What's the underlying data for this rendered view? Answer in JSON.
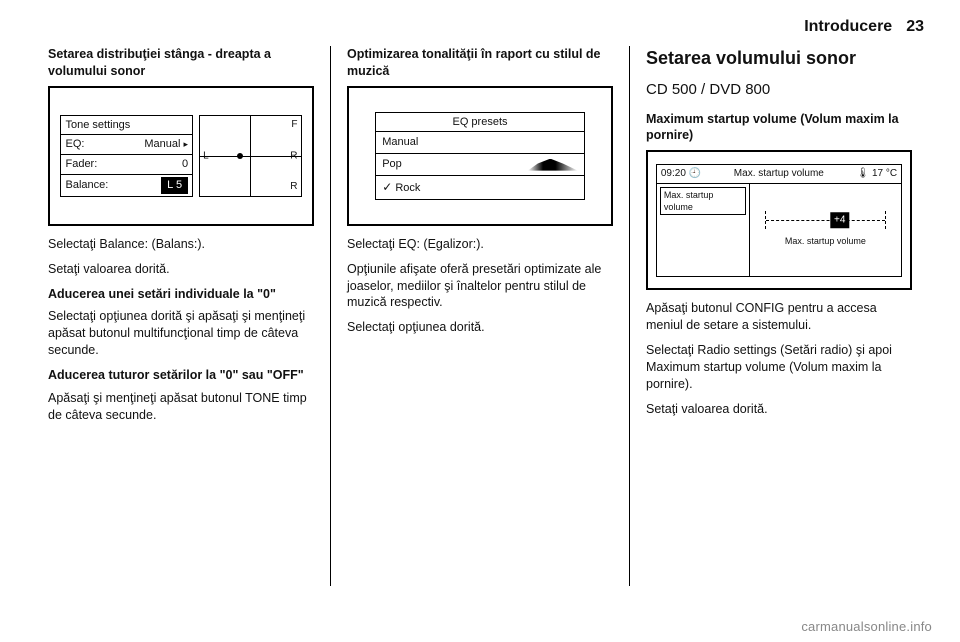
{
  "header": {
    "title": "Introducere",
    "page_number": "23"
  },
  "col1": {
    "heading": "Setarea distribuţiei stânga - dreapta a volumului sonor",
    "fig": {
      "panel_title": "Tone settings",
      "rows": {
        "eq_label": "EQ:",
        "eq_value": "Manual",
        "fader_label": "Fader:",
        "fader_value": "0",
        "balance_label": "Balance:",
        "balance_value": "L 5"
      },
      "compass": {
        "f": "F",
        "r": "R",
        "l": "L",
        "rr": "R"
      }
    },
    "p1": "Selectaţi Balance: (Balans:).",
    "p2": "Setaţi valoarea dorită.",
    "sub1_heading": "Aducerea unei setări individuale la \"0\"",
    "sub1_text": "Selectaţi opţiunea dorită şi apăsaţi şi menţineţi apăsat butonul multifuncţional timp de câteva secunde.",
    "sub2_heading": "Aducerea tuturor setărilor la \"0\" sau \"OFF\"",
    "sub2_text": "Apăsaţi şi menţineţi apăsat butonul TONE timp de câteva secunde."
  },
  "col2": {
    "heading": "Optimizarea tonalităţii în raport cu stilul de muzică",
    "fig": {
      "title": "EQ presets",
      "row1": "Manual",
      "row2": "Pop",
      "row3": "Rock",
      "check_glyph": "✓"
    },
    "p1": "Selectaţi EQ: (Egalizor:).",
    "p2": "Opţiunile afişate oferă presetări optimizate ale joaselor, mediilor şi înaltelor pentru stilul de muzică respectiv.",
    "p3": "Selectaţi opţiunea dorită."
  },
  "col3": {
    "big_heading": "Setarea volumului sonor",
    "sub_heading": "CD 500 / DVD 800",
    "section_heading": "Maximum startup volume (Volum maxim la pornire)",
    "fig": {
      "time": "09:20",
      "clock_glyph": "🕘",
      "title": "Max. startup volume",
      "temp_glyph": "🌡",
      "temp": "17 °C",
      "list_item": "Max. startup volume",
      "knob": "+4",
      "caption": "Max. startup volume"
    },
    "p1": "Apăsaţi butonul CONFIG pentru a accesa meniul de setare a sistemului.",
    "p2": "Selectaţi Radio settings (Setări radio) şi apoi Maximum startup volume (Volum maxim la pornire).",
    "p3": "Setaţi valoarea dorită."
  },
  "watermark": "carmanualsonline.info"
}
